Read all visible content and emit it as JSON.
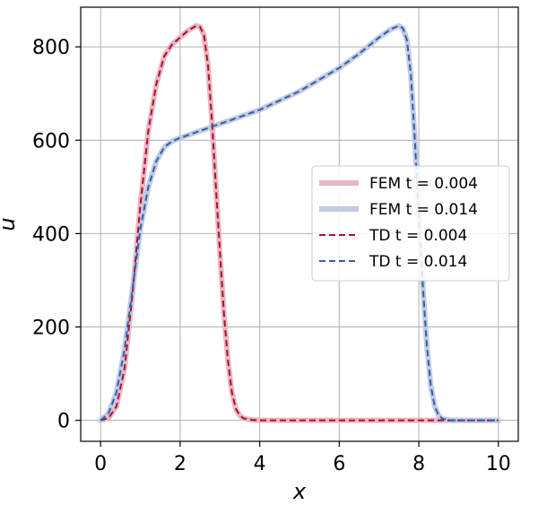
{
  "chart_data": {
    "type": "line",
    "title": "",
    "xlabel": "x",
    "ylabel": "u",
    "xlim": [
      -0.5,
      10.5
    ],
    "ylim": [
      -45,
      885
    ],
    "grid": true,
    "legend_position": "center-right",
    "x_ticks": [
      "0",
      "2",
      "4",
      "6",
      "8",
      "10"
    ],
    "x_tick_values": [
      0,
      2,
      4,
      6,
      8,
      10
    ],
    "y_ticks": [
      "0",
      "200",
      "400",
      "600",
      "800"
    ],
    "y_tick_values": [
      0,
      200,
      400,
      600,
      800
    ],
    "series": [
      {
        "name": "FEM t = 0.004",
        "color": "#e6b8c4",
        "style": "solid-thick",
        "x": [
          0,
          0.2,
          0.4,
          0.6,
          0.8,
          1.0,
          1.2,
          1.4,
          1.6,
          1.8,
          2.0,
          2.2,
          2.4,
          2.5,
          2.6,
          2.7,
          2.8,
          2.9,
          3.0,
          3.1,
          3.2,
          3.3,
          3.4,
          3.5,
          3.6,
          3.8,
          4.0,
          5.0,
          6.0,
          7.0,
          8.0,
          9.0,
          10.0
        ],
        "y": [
          0,
          5,
          30,
          110,
          270,
          460,
          620,
          720,
          780,
          805,
          820,
          835,
          845,
          843,
          825,
          760,
          640,
          500,
          360,
          230,
          130,
          60,
          25,
          10,
          4,
          1,
          0,
          0,
          0,
          0,
          0,
          0,
          0
        ]
      },
      {
        "name": "FEM t = 0.014",
        "color": "#c0cce4",
        "style": "solid-thick",
        "x": [
          0,
          0.2,
          0.4,
          0.6,
          0.8,
          1.0,
          1.2,
          1.4,
          1.6,
          1.8,
          2.0,
          2.5,
          3.0,
          3.5,
          4.0,
          4.5,
          5.0,
          5.5,
          6.0,
          6.5,
          7.0,
          7.3,
          7.5,
          7.6,
          7.7,
          7.8,
          7.9,
          8.0,
          8.1,
          8.2,
          8.3,
          8.4,
          8.5,
          8.6,
          8.8,
          9.0,
          10.0
        ],
        "y": [
          0,
          15,
          60,
          150,
          280,
          410,
          500,
          555,
          585,
          598,
          605,
          620,
          635,
          650,
          665,
          685,
          705,
          730,
          755,
          785,
          820,
          838,
          845,
          840,
          815,
          740,
          600,
          440,
          290,
          160,
          75,
          30,
          10,
          3,
          0,
          0,
          0
        ]
      },
      {
        "name": "TD t = 0.004",
        "color": "#b0102c",
        "style": "dashed",
        "x": [
          0,
          0.2,
          0.4,
          0.6,
          0.8,
          1.0,
          1.2,
          1.4,
          1.6,
          1.8,
          2.0,
          2.2,
          2.4,
          2.5,
          2.6,
          2.7,
          2.8,
          2.9,
          3.0,
          3.1,
          3.2,
          3.3,
          3.4,
          3.5,
          3.6,
          3.8,
          4.0,
          5.0,
          6.0,
          7.0,
          8.0,
          9.0,
          10.0
        ],
        "y": [
          0,
          5,
          30,
          110,
          270,
          460,
          620,
          720,
          780,
          805,
          820,
          835,
          845,
          843,
          825,
          760,
          640,
          500,
          360,
          230,
          130,
          60,
          25,
          10,
          4,
          1,
          0,
          0,
          0,
          0,
          0,
          0,
          0
        ]
      },
      {
        "name": "TD t = 0.014",
        "color": "#3a5ca8",
        "style": "dashed",
        "x": [
          0,
          0.2,
          0.4,
          0.6,
          0.8,
          1.0,
          1.2,
          1.4,
          1.6,
          1.8,
          2.0,
          2.5,
          3.0,
          3.5,
          4.0,
          4.5,
          5.0,
          5.5,
          6.0,
          6.5,
          7.0,
          7.3,
          7.5,
          7.6,
          7.7,
          7.8,
          7.9,
          8.0,
          8.1,
          8.2,
          8.3,
          8.4,
          8.5,
          8.6,
          8.8,
          9.0,
          10.0
        ],
        "y": [
          0,
          15,
          60,
          150,
          280,
          410,
          500,
          555,
          585,
          598,
          605,
          620,
          635,
          650,
          665,
          685,
          705,
          730,
          755,
          785,
          820,
          838,
          845,
          840,
          815,
          740,
          600,
          440,
          290,
          160,
          75,
          30,
          10,
          3,
          0,
          0,
          0
        ]
      }
    ]
  }
}
